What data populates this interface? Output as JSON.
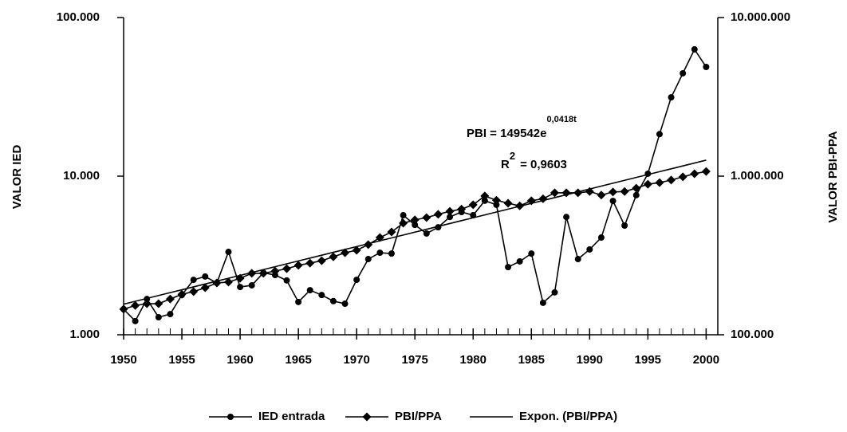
{
  "chart_data": {
    "type": "line",
    "x": [
      1950,
      1951,
      1952,
      1953,
      1954,
      1955,
      1956,
      1957,
      1958,
      1959,
      1960,
      1961,
      1962,
      1963,
      1964,
      1965,
      1966,
      1967,
      1968,
      1969,
      1970,
      1971,
      1972,
      1973,
      1974,
      1975,
      1976,
      1977,
      1978,
      1979,
      1980,
      1981,
      1982,
      1983,
      1984,
      1985,
      1986,
      1987,
      1988,
      1989,
      1990,
      1991,
      1992,
      1993,
      1994,
      1995,
      1996,
      1997,
      1998,
      1999,
      2000
    ],
    "xlim": [
      1950,
      2001
    ],
    "xticks": [
      1950,
      1955,
      1960,
      1965,
      1970,
      1975,
      1980,
      1985,
      1990,
      1995,
      2000
    ],
    "ylim": [
      1000,
      100000
    ],
    "yticks": [
      {
        "value": 1000,
        "label": "1.000"
      },
      {
        "value": 10000,
        "label": "10.000"
      },
      {
        "value": 100000,
        "label": "100.000"
      }
    ],
    "y2lim": [
      100000,
      10000000
    ],
    "y2ticks": [
      {
        "value": 100000,
        "label": "100.000"
      },
      {
        "value": 1000000,
        "label": "1.000.000"
      },
      {
        "value": 10000000,
        "label": "10.000.000"
      }
    ],
    "log_scale": true,
    "y_label": "VALOR IED",
    "y2_label": "VALOR PBI-PPA",
    "annotation": {
      "equation": "PBI = 149542e",
      "exponent": "0,0418t",
      "r2": "R",
      "r2_power": "2",
      "r2_value": "= 0,9603"
    },
    "legend": "bottom",
    "series": [
      {
        "name": "IED entrada",
        "color": "#000000",
        "marker": "circle",
        "axis": "y",
        "values": [
          1450,
          1220,
          1680,
          1290,
          1350,
          1780,
          2220,
          2330,
          2120,
          3330,
          2000,
          2050,
          2460,
          2380,
          2200,
          1610,
          1910,
          1780,
          1630,
          1570,
          2220,
          3000,
          3290,
          3250,
          5670,
          4930,
          4350,
          4760,
          5530,
          5940,
          5670,
          7000,
          6600,
          2670,
          2900,
          3250,
          1590,
          1850,
          5530,
          3000,
          3450,
          4100,
          6980,
          4880,
          7590,
          10360,
          18400,
          31400,
          44500,
          63000,
          48800
        ]
      },
      {
        "name": "PBI/PPA",
        "color": "#000000",
        "marker": "diamond",
        "axis": "y2",
        "values": [
          145000,
          153000,
          157000,
          157000,
          168000,
          180000,
          187000,
          198000,
          212000,
          215000,
          227000,
          244000,
          244000,
          252000,
          261000,
          274000,
          283000,
          293000,
          310000,
          329000,
          341000,
          370000,
          410000,
          445000,
          505000,
          530000,
          548000,
          575000,
          600000,
          620000,
          660000,
          750000,
          705000,
          675000,
          650000,
          700000,
          720000,
          785000,
          785000,
          785000,
          800000,
          760000,
          795000,
          800000,
          840000,
          890000,
          910000,
          945000,
          990000,
          1036000,
          1070000
        ]
      },
      {
        "name": "Expon. (PBI/PPA)",
        "color": "#000000",
        "marker": "none",
        "axis": "y2",
        "values": [
          155926,
          162583,
          169524,
          176761,
          184307,
          192176,
          200380,
          208935,
          217855,
          227155,
          236853,
          246965,
          257508,
          268502,
          279965,
          291917,
          304380,
          317374,
          330924,
          345052,
          359782,
          375142,
          391158,
          407857,
          425269,
          443425,
          462355,
          482094,
          502676,
          524136,
          546512,
          569844,
          594171,
          619537,
          645986,
          673565,
          702320,
          732304,
          763567,
          796165,
          830155,
          865596,
          902550,
          941082,
          981258,
          1023150,
          1066830,
          1112380,
          1159870,
          1209380,
          1261010
        ]
      }
    ]
  }
}
